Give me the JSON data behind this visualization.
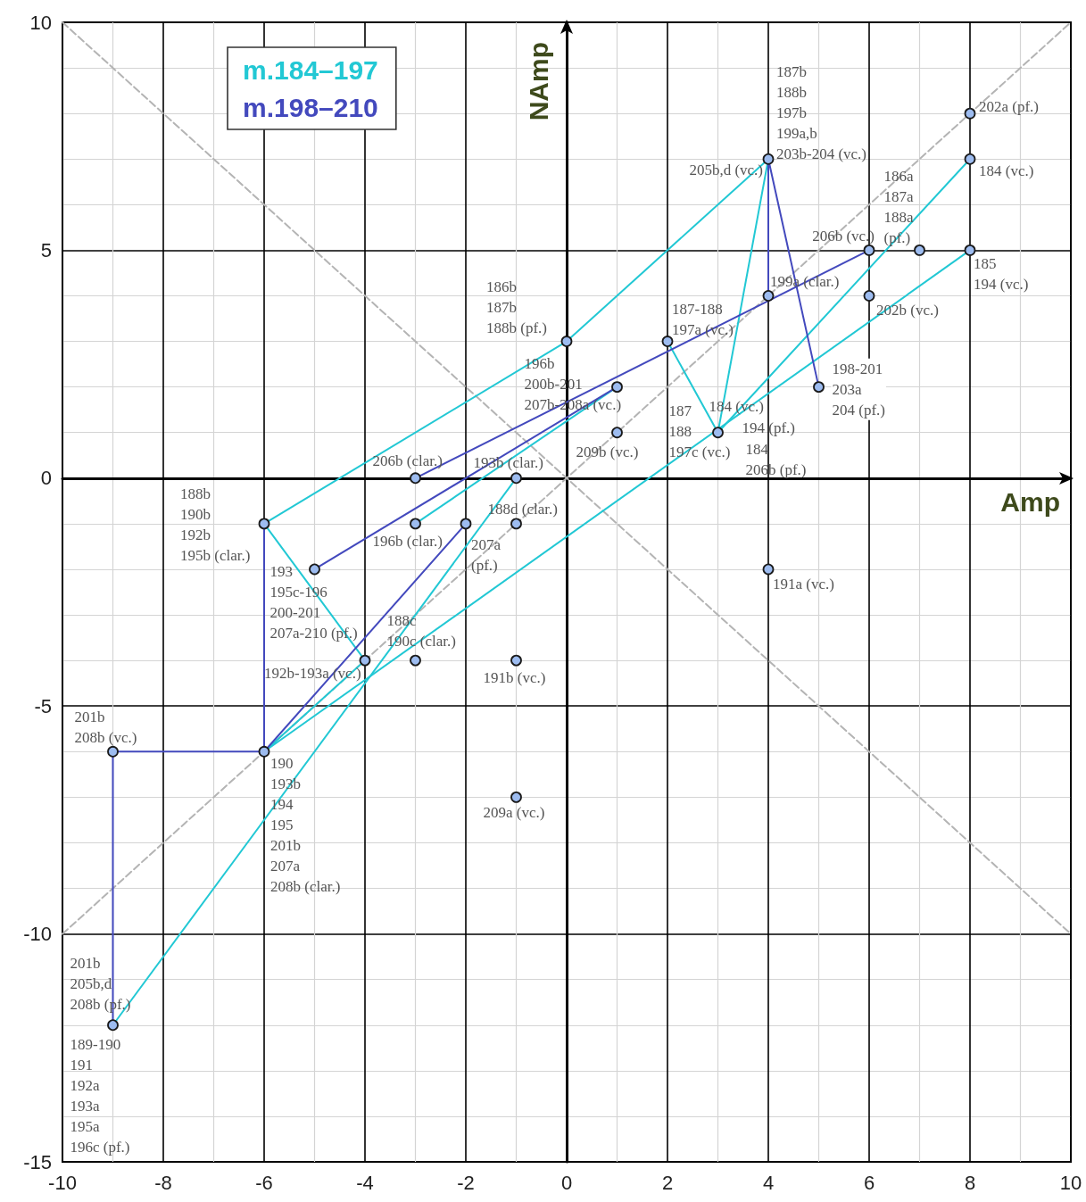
{
  "chart_data": {
    "type": "line",
    "xlabel": "Amp",
    "ylabel": "NAmp",
    "xlim": [
      -10,
      10
    ],
    "xticks": [
      -10,
      -8,
      -6,
      -4,
      -2,
      0,
      2,
      4,
      6,
      8,
      10
    ],
    "ylim": [
      -15,
      10
    ],
    "yticks": [
      -15,
      -10,
      -5,
      0,
      5,
      10
    ],
    "grid": true,
    "legend": "top left",
    "series": [
      {
        "color": "#b4b4b4",
        "line_style": "dashed",
        "marker": "none",
        "x": [
          -10,
          10
        ],
        "values": [
          -10,
          10
        ]
      },
      {
        "color": "#b4b4b4",
        "line_style": "dashed",
        "marker": "none",
        "x": [
          -10,
          10
        ],
        "values": [
          10,
          -10
        ]
      },
      {
        "name": "m.184–197",
        "color": "#22c8d4",
        "line_style": "solid",
        "marker": "none",
        "x": [
          2,
          3,
          4,
          0,
          -6,
          -4,
          -6,
          8
        ],
        "values": [
          3,
          1,
          7,
          3,
          -1,
          -4,
          -6,
          5
        ]
      },
      {
        "color": "#22c8d4",
        "line_style": "solid",
        "marker": "none",
        "x": [
          8,
          3
        ],
        "values": [
          7,
          1
        ]
      },
      {
        "color": "#22c8d4",
        "line_style": "solid",
        "marker": "none",
        "x": [
          -9,
          -1
        ],
        "values": [
          -12,
          0
        ]
      },
      {
        "color": "#22c8d4",
        "line_style": "solid",
        "marker": "none",
        "x": [
          -3,
          1
        ],
        "values": [
          -1,
          2
        ]
      },
      {
        "name": "m.198–210",
        "color": "#4349bd",
        "line_style": "solid",
        "marker": "none",
        "x": [
          5,
          4,
          4
        ],
        "values": [
          2,
          7,
          4
        ]
      },
      {
        "color": "#4349bd",
        "line_style": "solid",
        "marker": "none",
        "x": [
          6,
          -3
        ],
        "values": [
          5,
          0
        ]
      },
      {
        "color": "#4349bd",
        "line_style": "solid",
        "marker": "none",
        "x": [
          1,
          -5
        ],
        "values": [
          2,
          -2
        ]
      },
      {
        "color": "#4349bd",
        "line_style": "solid",
        "marker": "none",
        "x": [
          -6,
          -6,
          -9,
          -9
        ],
        "values": [
          -1,
          -6,
          -6,
          -12
        ]
      },
      {
        "color": "#4349bd",
        "line_style": "solid",
        "marker": "none",
        "x": [
          -6,
          -2
        ],
        "values": [
          -6,
          -1
        ]
      },
      {
        "type": "scatter",
        "color": "#9dbcf0",
        "marker": "circle",
        "x": [
          8,
          8,
          8,
          7,
          6,
          6,
          5,
          4,
          4,
          4,
          3,
          2,
          1,
          1,
          0,
          -1,
          -1,
          -1,
          -1,
          -3,
          -3,
          -3,
          -2,
          -4,
          -5,
          -6,
          -6,
          -9,
          -9
        ],
        "values": [
          8,
          7,
          5,
          5,
          5,
          4,
          2,
          7,
          4,
          -2,
          1,
          3,
          2,
          1,
          3,
          0,
          -1,
          -4,
          -7,
          0,
          -1,
          -4,
          -1,
          -4,
          -2,
          -1,
          -6,
          -6,
          -12
        ]
      }
    ],
    "annotations": [
      {
        "text": "202a (pf.)",
        "x": 8,
        "y": 8
      },
      {
        "text": "184 (vc.)",
        "x": 8,
        "y": 7
      },
      {
        "text": "185\n194 (vc.)",
        "x": 8,
        "y": 5
      },
      {
        "text": "186a\n187a\n188a\n(pf.)",
        "x": 7,
        "y": 5
      },
      {
        "text": "206b (vc.)",
        "x": 6,
        "y": 5
      },
      {
        "text": "202b (vc.)",
        "x": 6,
        "y": 4
      },
      {
        "text": "198-201\n203a\n204 (pf.)",
        "x": 5,
        "y": 2
      },
      {
        "text": "187b\n188b\n197b\n199a,b\n203b-204 (vc.)",
        "x": 4,
        "y": 7
      },
      {
        "text": "205b,d (vc.)",
        "x": 4,
        "y": 7
      },
      {
        "text": "199a (clar.)",
        "x": 4,
        "y": 4
      },
      {
        "text": "191a (vc.)",
        "x": 4,
        "y": -2
      },
      {
        "text": "187\n188\n197c (vc.)",
        "x": 3,
        "y": 1
      },
      {
        "text": "184 (vc.)",
        "x": 3,
        "y": 1
      },
      {
        "text": "194 (pf.)",
        "x": 3,
        "y": 1
      },
      {
        "text": "184\n206b (pf.)",
        "x": 3,
        "y": 1
      },
      {
        "text": "187-188\n197a (vc.)",
        "x": 2,
        "y": 3
      },
      {
        "text": "186b\n187b\n188b (pf.)",
        "x": 0,
        "y": 3
      },
      {
        "text": "196b\n200b-201\n207b-208a (vc.)",
        "x": 1,
        "y": 2
      },
      {
        "text": "209b (vc.)",
        "x": 1,
        "y": 1
      },
      {
        "text": "206b (clar.)",
        "x": -3,
        "y": 0
      },
      {
        "text": "193b (clar.)",
        "x": -1,
        "y": 0
      },
      {
        "text": "188d (clar.)",
        "x": -1,
        "y": -1
      },
      {
        "text": "196b (clar.)",
        "x": -3,
        "y": -1
      },
      {
        "text": "207a\n(pf.)",
        "x": -2,
        "y": -1
      },
      {
        "text": "188b\n190b\n192b\n195b (clar.)",
        "x": -6,
        "y": -1
      },
      {
        "text": "193\n195c-196\n200-201\n207a-210 (pf.)",
        "x": -5,
        "y": -2
      },
      {
        "text": "188c\n190c (clar.)",
        "x": -3,
        "y": -4
      },
      {
        "text": "192b-193a (vc.)",
        "x": -4,
        "y": -4
      },
      {
        "text": "191b (vc.)",
        "x": -1,
        "y": -4
      },
      {
        "text": "209a (vc.)",
        "x": -1,
        "y": -7
      },
      {
        "text": "201b\n208b (vc.)",
        "x": -9,
        "y": -6
      },
      {
        "text": "190\n193b\n194\n195\n201b\n207a\n208b (clar.)",
        "x": -6,
        "y": -6
      },
      {
        "text": "201b\n205b,d\n208b (pf.)",
        "x": -9,
        "y": -12
      },
      {
        "text": "189-190\n191\n192a\n193a\n195a\n196c (pf.)",
        "x": -9,
        "y": -12
      }
    ]
  }
}
